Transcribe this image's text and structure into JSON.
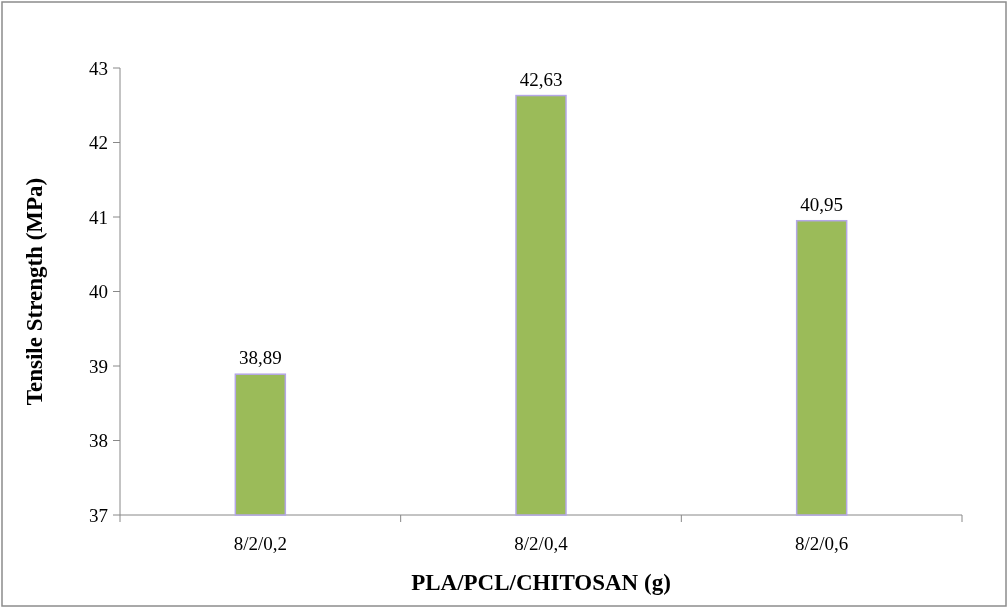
{
  "chart_data": {
    "type": "bar",
    "xlabel": "PLA/PCL/CHITOSAN (g)",
    "ylabel": "Tensile Strength (MPa)",
    "categories": [
      "8/2/0,2",
      "8/2/0,4",
      "8/2/0,6"
    ],
    "values": [
      38.89,
      42.63,
      40.95
    ],
    "value_labels": [
      "38,89",
      "42,63",
      "40,95"
    ],
    "color": "#9bbb59",
    "ylim": [
      37,
      43
    ],
    "yticks": [
      37,
      38,
      39,
      40,
      41,
      42,
      43
    ],
    "grid": false
  }
}
